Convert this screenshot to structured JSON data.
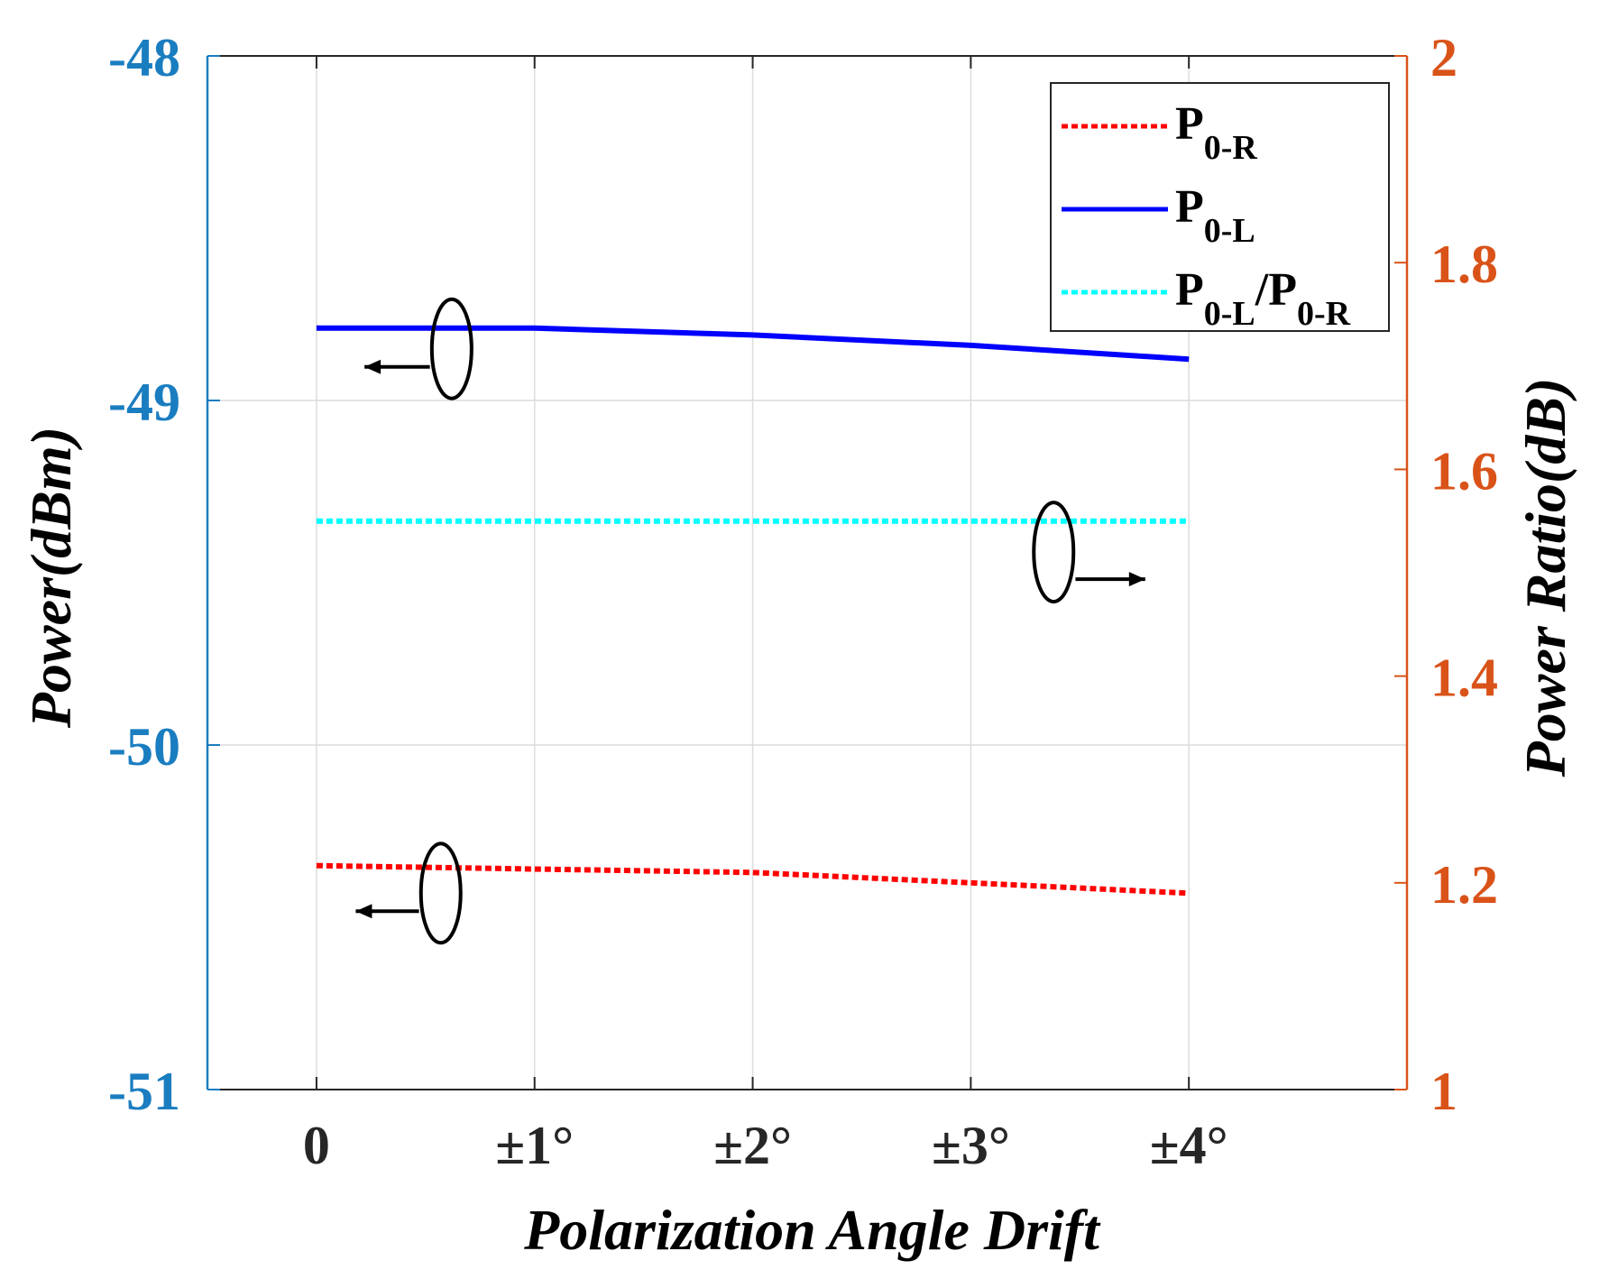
{
  "chart_data": {
    "type": "line",
    "xlabel": "Polarization Angle Drift",
    "ylabel_left": "Power(dBm)",
    "ylabel_right": "Power Ratio(dB)",
    "x": [
      0,
      1,
      2,
      3,
      4
    ],
    "xlim": [
      -0.5,
      5
    ],
    "x_tick_labels": [
      "0",
      "±1°",
      "±2°",
      "±3°",
      "±4°"
    ],
    "ylim_left": [
      -51,
      -48
    ],
    "y_ticks_left": [
      -51,
      -50,
      -49,
      -48
    ],
    "y_tick_labels_left": [
      "-51",
      "-50",
      "-49",
      "-48"
    ],
    "ylim_right": [
      1,
      2
    ],
    "y_ticks_right": [
      1,
      1.2,
      1.4,
      1.6,
      1.8,
      2
    ],
    "y_tick_labels_right": [
      "1",
      "1.2",
      "1.4",
      "1.6",
      "1.8",
      "2"
    ],
    "grid": true,
    "series": [
      {
        "id": "p0r",
        "legend_main": "P",
        "legend_sub": "0-R",
        "axis": "left",
        "style": "dotted",
        "color": "#ff0000",
        "values": [
          -50.35,
          -50.36,
          -50.37,
          -50.4,
          -50.43
        ]
      },
      {
        "id": "p0l",
        "legend_main": "P",
        "legend_sub": "0-L",
        "axis": "left",
        "style": "solid",
        "color": "#0000ff",
        "values": [
          -48.79,
          -48.79,
          -48.81,
          -48.84,
          -48.88
        ]
      },
      {
        "id": "ratio",
        "legend_main": "P",
        "legend_sub": "0-L",
        "legend_mid": "/P",
        "legend_sub2": "0-R",
        "axis": "right",
        "style": "dotted",
        "color": "#00ffff",
        "values": [
          1.55,
          1.55,
          1.55,
          1.55,
          1.55
        ]
      }
    ],
    "legend_position": "top-right",
    "annotations": [
      {
        "type": "ellipse-arrow",
        "target": "p0l",
        "direction": "left"
      },
      {
        "type": "ellipse-arrow",
        "target": "ratio",
        "direction": "right"
      },
      {
        "type": "ellipse-arrow",
        "target": "p0r",
        "direction": "left"
      }
    ],
    "colors": {
      "left_axis": "#1a7dc0",
      "right_axis": "#d95319",
      "text": "#262626",
      "grid": "#dcdcdc"
    }
  }
}
